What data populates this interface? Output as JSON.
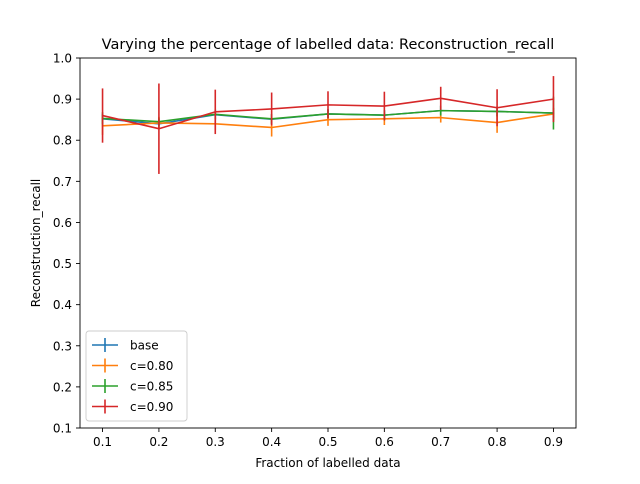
{
  "chart_data": {
    "type": "line",
    "title": "Varying the percentage of labelled data: Reconstruction_recall",
    "xlabel": "Fraction of labelled data",
    "ylabel": "Reconstruction_recall",
    "xlim": [
      0.06,
      0.94
    ],
    "ylim": [
      0.1,
      1.0
    ],
    "x_ticks": [
      0.1,
      0.2,
      0.3,
      0.4,
      0.5,
      0.6,
      0.7,
      0.8,
      0.9
    ],
    "x_tick_labels": [
      "0.1",
      "0.2",
      "0.3",
      "0.4",
      "0.5",
      "0.6",
      "0.7",
      "0.8",
      "0.9"
    ],
    "y_ticks": [
      0.1,
      0.2,
      0.3,
      0.4,
      0.5,
      0.6,
      0.7,
      0.8,
      0.9,
      1.0
    ],
    "y_tick_labels": [
      "0.1",
      "0.2",
      "0.3",
      "0.4",
      "0.5",
      "0.6",
      "0.7",
      "0.8",
      "0.9",
      "1.0"
    ],
    "grid": false,
    "legend_position": "bottom-left",
    "x": [
      0.1,
      0.2,
      0.3,
      0.4,
      0.5,
      0.6,
      0.7,
      0.8,
      0.9
    ],
    "series": [
      {
        "name": "base",
        "color": "#1f77b4",
        "values": [
          0.852,
          0.84,
          0.862,
          0.851,
          0.864,
          0.861,
          0.872,
          0.87,
          0.866
        ],
        "errors": [
          0.012,
          0.012,
          0.012,
          0.012,
          0.012,
          0.012,
          0.012,
          0.012,
          0.012
        ]
      },
      {
        "name": "c=0.80",
        "color": "#ff7f0e",
        "values": [
          0.835,
          0.842,
          0.84,
          0.831,
          0.85,
          0.852,
          0.855,
          0.843,
          0.864
        ],
        "errors": [
          0.022,
          0.015,
          0.015,
          0.022,
          0.015,
          0.015,
          0.012,
          0.025,
          0.015
        ]
      },
      {
        "name": "c=0.85",
        "color": "#2ca02c",
        "values": [
          0.853,
          0.845,
          0.863,
          0.852,
          0.864,
          0.861,
          0.872,
          0.87,
          0.866
        ],
        "errors": [
          0.015,
          0.01,
          0.012,
          0.012,
          0.01,
          0.012,
          0.012,
          0.012,
          0.04
        ]
      },
      {
        "name": "c=0.90",
        "color": "#d62728",
        "values": [
          0.86,
          0.828,
          0.869,
          0.876,
          0.886,
          0.883,
          0.902,
          0.879,
          0.9
        ],
        "errors": [
          0.066,
          0.11,
          0.054,
          0.04,
          0.033,
          0.035,
          0.028,
          0.045,
          0.056
        ]
      }
    ]
  }
}
